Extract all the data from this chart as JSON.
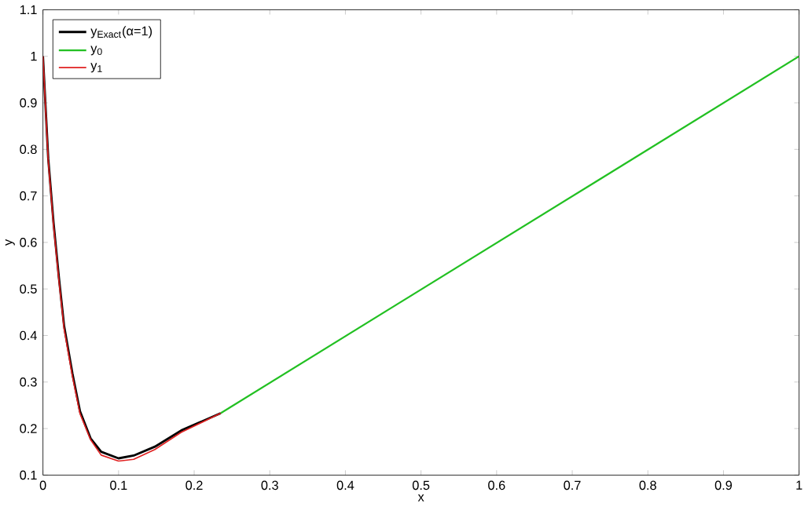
{
  "chart_data": {
    "type": "line",
    "xlabel": "x",
    "ylabel": "y",
    "xlim": [
      0,
      1
    ],
    "ylim": [
      0.1,
      1.1
    ],
    "xticks": [
      0,
      0.1,
      0.2,
      0.3,
      0.4,
      0.5,
      0.6,
      0.7,
      0.8,
      0.9,
      1
    ],
    "yticks": [
      0.1,
      0.2,
      0.3,
      0.4,
      0.5,
      0.6,
      0.7,
      0.8,
      0.9,
      1,
      1.1
    ],
    "grid": false,
    "legend": "top left",
    "marker": "none",
    "line_style": "solid",
    "series": [
      {
        "name": "y$_{Exact}$(α=1)",
        "color": "#000000",
        "x": [
          0,
          0.007,
          0.014,
          0.021,
          0.028,
          0.039,
          0.049,
          0.063,
          0.077,
          0.1,
          0.12,
          0.148,
          0.183,
          0.235
        ],
        "values": [
          1.0,
          0.78,
          0.642,
          0.526,
          0.42,
          0.318,
          0.237,
          0.179,
          0.15,
          0.136,
          0.142,
          0.161,
          0.196,
          0.233
        ]
      },
      {
        "name": "y$_{0}$",
        "color": "#22c022",
        "x": [
          0.235,
          1
        ],
        "values": [
          0.233,
          1.0
        ]
      },
      {
        "name": "y$_{1}$",
        "color": "#e02020",
        "x": [
          0,
          0.007,
          0.014,
          0.021,
          0.028,
          0.039,
          0.049,
          0.063,
          0.077,
          0.1,
          0.12,
          0.148,
          0.183,
          0.235
        ],
        "values": [
          1.0,
          0.775,
          0.636,
          0.52,
          0.414,
          0.312,
          0.232,
          0.176,
          0.143,
          0.13,
          0.134,
          0.155,
          0.192,
          0.233
        ]
      }
    ]
  }
}
